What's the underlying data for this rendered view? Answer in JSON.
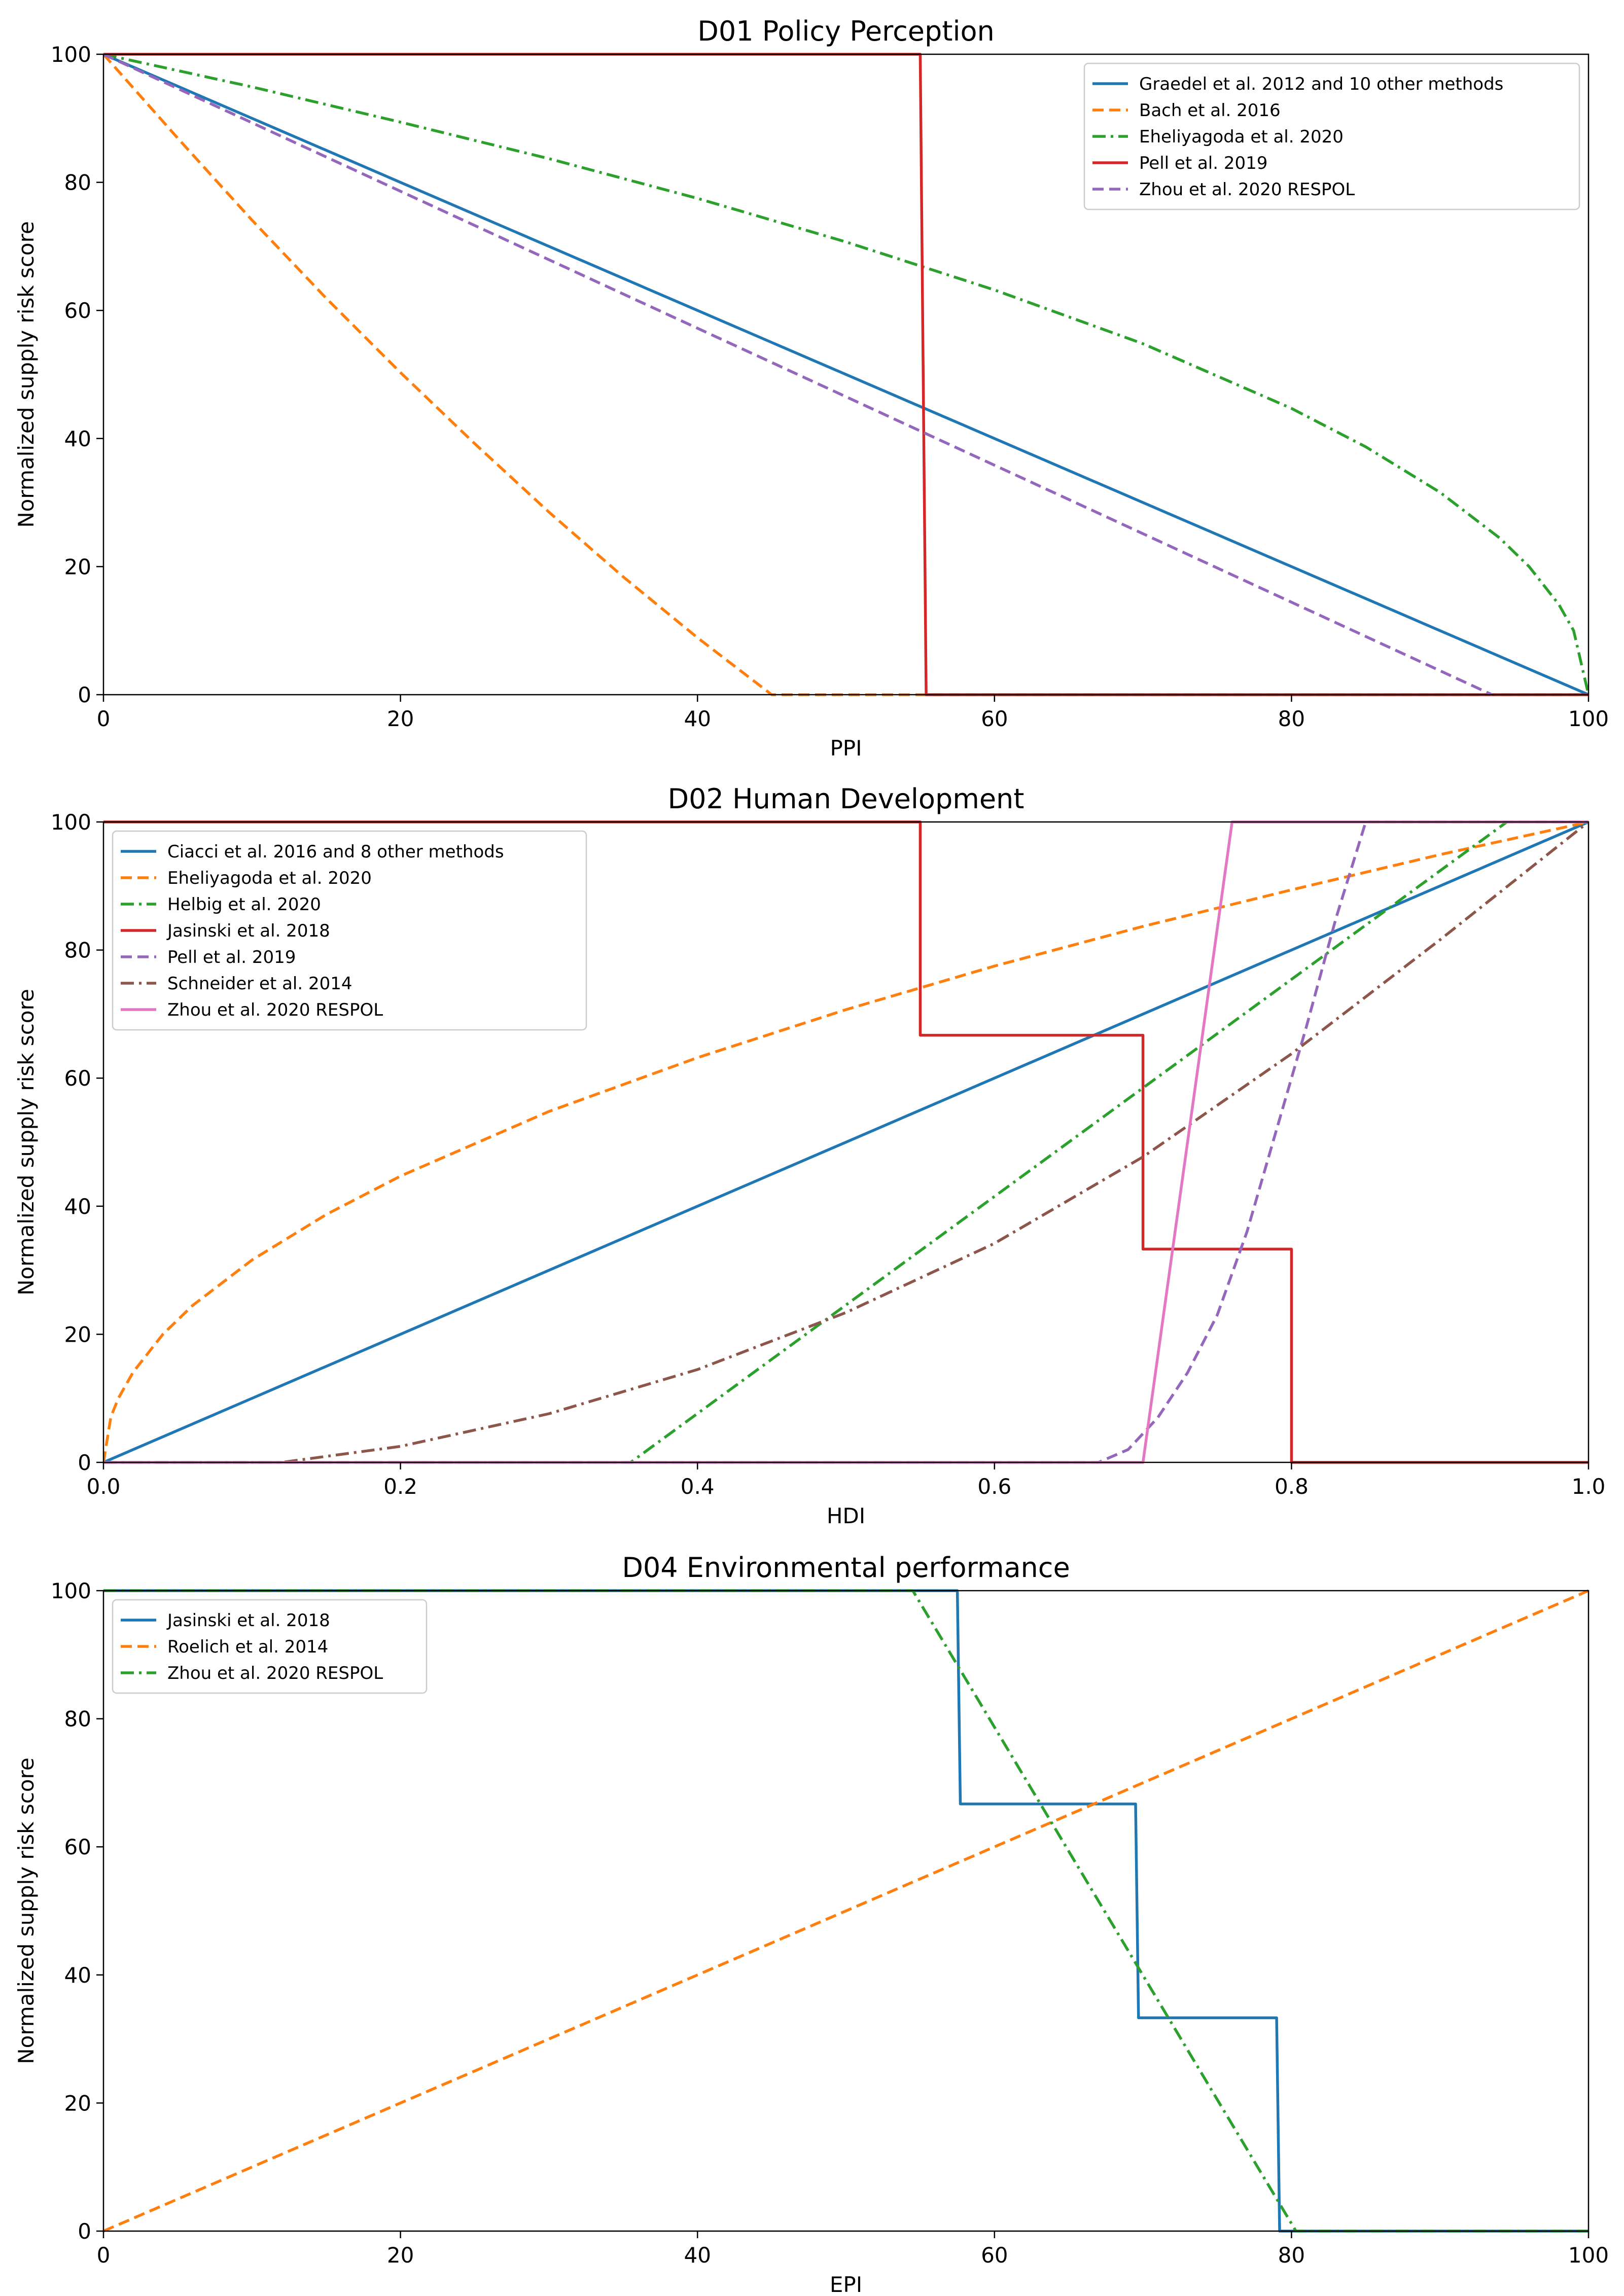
{
  "chart_data": [
    {
      "type": "line",
      "title": "D01 Policy Perception",
      "xlabel": "PPI",
      "ylabel": "Normalized supply risk score",
      "xlim": [
        0,
        100
      ],
      "ylim": [
        0,
        100
      ],
      "xticks": [
        0,
        20,
        40,
        60,
        80,
        100
      ],
      "xtick_labels": [
        "0",
        "20",
        "40",
        "60",
        "80",
        "100"
      ],
      "yticks": [
        0,
        20,
        40,
        60,
        80,
        100
      ],
      "ytick_labels": [
        "0",
        "20",
        "40",
        "60",
        "80",
        "100"
      ],
      "grid": false,
      "legend_position": "top-right",
      "series": [
        {
          "name": "Graedel et al. 2012 and 10 other methods",
          "color": "#1f77b4",
          "style": "solid",
          "x": [
            0,
            100
          ],
          "y": [
            100,
            0
          ]
        },
        {
          "name": "Bach et al. 2016",
          "color": "#ff7f0e",
          "style": "dashed",
          "x": [
            0,
            5,
            10,
            15,
            20,
            25,
            30,
            35,
            40,
            45,
            100
          ],
          "y": [
            100,
            86.9,
            74.1,
            61.9,
            50.3,
            39.2,
            28.5,
            18.4,
            8.9,
            0,
            0
          ]
        },
        {
          "name": "Eheliyagoda et al. 2020",
          "color": "#2ca02c",
          "style": "dashdot",
          "x": [
            0,
            10,
            20,
            30,
            40,
            50,
            60,
            70,
            80,
            85,
            90,
            94,
            96,
            98,
            99,
            100
          ],
          "y": [
            100,
            94.9,
            89.4,
            83.7,
            77.5,
            70.7,
            63.2,
            54.8,
            44.7,
            38.7,
            31.6,
            24.5,
            20,
            14.1,
            10,
            0
          ]
        },
        {
          "name": "Pell et al. 2019",
          "color": "#d62728",
          "style": "solid",
          "x": [
            0,
            55,
            55.4,
            100
          ],
          "y": [
            100,
            100,
            0,
            0
          ]
        },
        {
          "name": "Zhou et al. 2020 RESPOL",
          "color": "#9467bd",
          "style": "dashed",
          "x": [
            0,
            93.5
          ],
          "y": [
            100,
            0
          ]
        }
      ]
    },
    {
      "type": "line",
      "title": "D02 Human Development",
      "xlabel": "HDI",
      "ylabel": "Normalized supply risk score",
      "xlim": [
        0,
        1
      ],
      "ylim": [
        0,
        100
      ],
      "xticks": [
        0,
        0.2,
        0.4,
        0.6,
        0.8,
        1.0
      ],
      "xtick_labels": [
        "0.0",
        "0.2",
        "0.4",
        "0.6",
        "0.8",
        "1.0"
      ],
      "yticks": [
        0,
        20,
        40,
        60,
        80,
        100
      ],
      "ytick_labels": [
        "0",
        "20",
        "40",
        "60",
        "80",
        "100"
      ],
      "grid": false,
      "legend_position": "top-left",
      "series": [
        {
          "name": "Ciacci et al. 2016 and 8 other methods",
          "color": "#1f77b4",
          "style": "solid",
          "x": [
            0,
            1
          ],
          "y": [
            0,
            100
          ]
        },
        {
          "name": "Eheliyagoda et al. 2020",
          "color": "#ff7f0e",
          "style": "dashed",
          "x": [
            0,
            0.005,
            0.01,
            0.02,
            0.04,
            0.06,
            0.1,
            0.15,
            0.2,
            0.3,
            0.4,
            0.5,
            0.6,
            0.7,
            0.8,
            0.9,
            1.0
          ],
          "y": [
            0,
            7.1,
            10,
            14.1,
            20,
            24.5,
            31.6,
            38.7,
            44.7,
            54.8,
            63.2,
            70.7,
            77.5,
            83.7,
            89.4,
            94.9,
            100
          ]
        },
        {
          "name": "Helbig et al. 2020",
          "color": "#2ca02c",
          "style": "dashdot",
          "x": [
            0,
            0.355,
            0.945
          ],
          "y": [
            0,
            0,
            100
          ]
        },
        {
          "name": "Jasinski et al. 2018",
          "color": "#d62728",
          "style": "solid",
          "x": [
            0,
            0.55,
            0.55,
            0.7,
            0.7,
            0.8,
            0.8,
            1.0
          ],
          "y": [
            100,
            100,
            66.7,
            66.7,
            33.3,
            33.3,
            0,
            0
          ]
        },
        {
          "name": "Pell et al. 2019",
          "color": "#9467bd",
          "style": "dashed",
          "x": [
            0,
            0.67,
            0.69,
            0.71,
            0.73,
            0.75,
            0.77,
            0.79,
            0.81,
            0.83,
            0.85,
            1.0
          ],
          "y": [
            0,
            0,
            2,
            7,
            14,
            23,
            36,
            52,
            68,
            85,
            100,
            100
          ]
        },
        {
          "name": "Schneider et al. 2014",
          "color": "#8c564b",
          "style": "dashdot",
          "x": [
            0,
            0.12,
            0.2,
            0.3,
            0.4,
            0.5,
            0.6,
            0.7,
            0.8,
            0.9,
            1.0
          ],
          "y": [
            0,
            0,
            2.5,
            7.6,
            14.5,
            23.4,
            34.2,
            47.7,
            63.8,
            81.6,
            100
          ]
        },
        {
          "name": "Zhou et al. 2020 RESPOL",
          "color": "#e377c2",
          "style": "solid",
          "x": [
            0,
            0.7,
            0.76,
            1.0
          ],
          "y": [
            0,
            0,
            100,
            100
          ]
        }
      ]
    },
    {
      "type": "line",
      "title": "D04 Environmental performance",
      "xlabel": "EPI",
      "ylabel": "Normalized supply risk score",
      "xlim": [
        0,
        100
      ],
      "ylim": [
        0,
        100
      ],
      "xticks": [
        0,
        20,
        40,
        60,
        80,
        100
      ],
      "xtick_labels": [
        "0",
        "20",
        "40",
        "60",
        "80",
        "100"
      ],
      "yticks": [
        0,
        20,
        40,
        60,
        80,
        100
      ],
      "ytick_labels": [
        "0",
        "20",
        "40",
        "60",
        "80",
        "100"
      ],
      "grid": false,
      "legend_position": "top-left",
      "series": [
        {
          "name": "Jasinski et al. 2018",
          "color": "#1f77b4",
          "style": "solid",
          "x": [
            0,
            57.5,
            57.7,
            69.5,
            69.7,
            79,
            79.2,
            100
          ],
          "y": [
            100,
            100,
            66.7,
            66.7,
            33.3,
            33.3,
            0,
            0
          ]
        },
        {
          "name": "Roelich et al. 2014",
          "color": "#ff7f0e",
          "style": "dashed",
          "x": [
            0,
            100
          ],
          "y": [
            0,
            100
          ]
        },
        {
          "name": "Zhou et al. 2020 RESPOL",
          "color": "#2ca02c",
          "style": "dashdot",
          "x": [
            0,
            54.5,
            80.3,
            100
          ],
          "y": [
            100,
            100,
            0,
            0
          ]
        }
      ]
    }
  ]
}
